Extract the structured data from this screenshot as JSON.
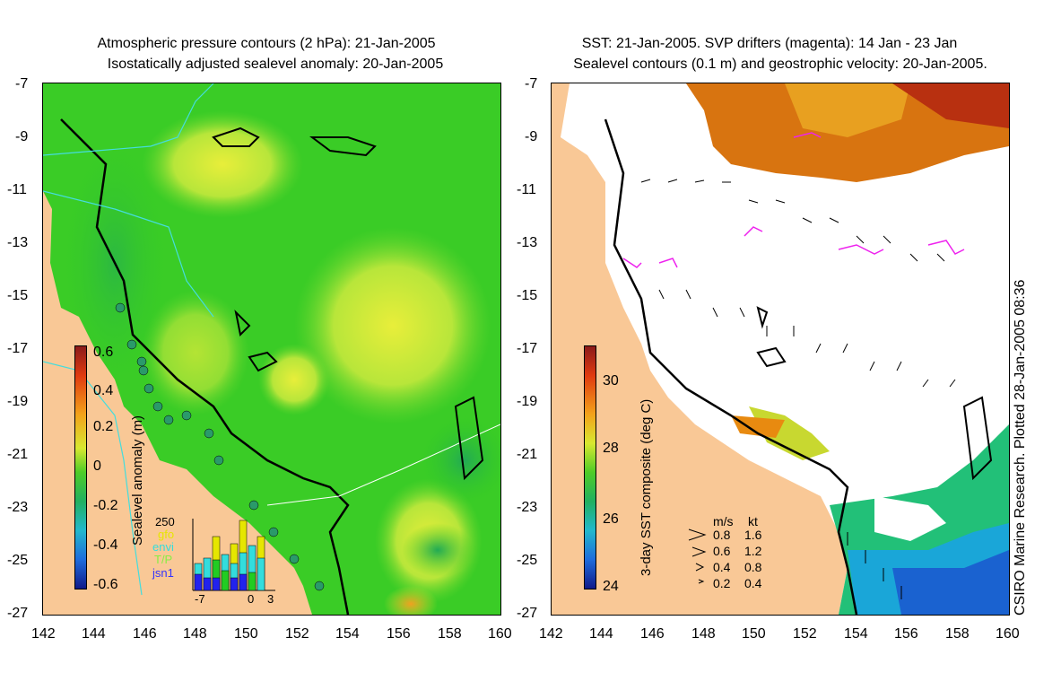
{
  "left_panel": {
    "title_line1": "Atmospheric pressure contours (2 hPa): 21-Jan-2005",
    "title_line2": "Isostatically adjusted sealevel anomaly: 20-Jan-2005",
    "colorbar_label": "Sealevel anomaly (m)",
    "colorbar_ticks": [
      "0.6",
      "0.4",
      "0.2",
      "0",
      "-0.2",
      "-0.4",
      "-0.6"
    ],
    "inset": {
      "y_label": "250",
      "legend": [
        {
          "label": "gfo",
          "color": "#e6e600"
        },
        {
          "label": "envi",
          "color": "#33dddd"
        },
        {
          "label": "T/P",
          "color": "#22cc22"
        },
        {
          "label": "jsn1",
          "color": "#2222ee"
        }
      ],
      "x_ticks": [
        "-7",
        "0",
        "3"
      ]
    }
  },
  "right_panel": {
    "title_line1": "SST: 21-Jan-2005. SVP drifters (magenta): 14 Jan - 23 Jan",
    "title_line2": "Sealevel contours (0.1 m) and geostrophic velocity: 20-Jan-2005.",
    "colorbar_label": "3-day SST composite (deg C)",
    "colorbar_ticks": [
      "30",
      "28",
      "26",
      "24"
    ],
    "velocity_legend": {
      "header_ms": "m/s",
      "header_kt": "kt",
      "rows": [
        {
          "ms": "0.8",
          "kt": "1.6"
        },
        {
          "ms": "0.6",
          "kt": "1.2"
        },
        {
          "ms": "0.4",
          "kt": "0.8"
        },
        {
          "ms": "0.2",
          "kt": "0.4"
        }
      ]
    }
  },
  "axes": {
    "lat_ticks": [
      "-7",
      "-9",
      "-11",
      "-13",
      "-15",
      "-17",
      "-19",
      "-21",
      "-23",
      "-25",
      "-27"
    ],
    "lon_ticks": [
      "142",
      "144",
      "146",
      "148",
      "150",
      "152",
      "154",
      "156",
      "158",
      "160"
    ]
  },
  "credit": "CSIRO Marine Research. Plotted 28-Jan-2005 08:36",
  "colors": {
    "land": "#f9c896",
    "ocean_green": "#33cc22",
    "anomaly_yellow": "#d8ee33",
    "sst_orange": "#e08000",
    "drifter_magenta": "#ee22ee"
  }
}
